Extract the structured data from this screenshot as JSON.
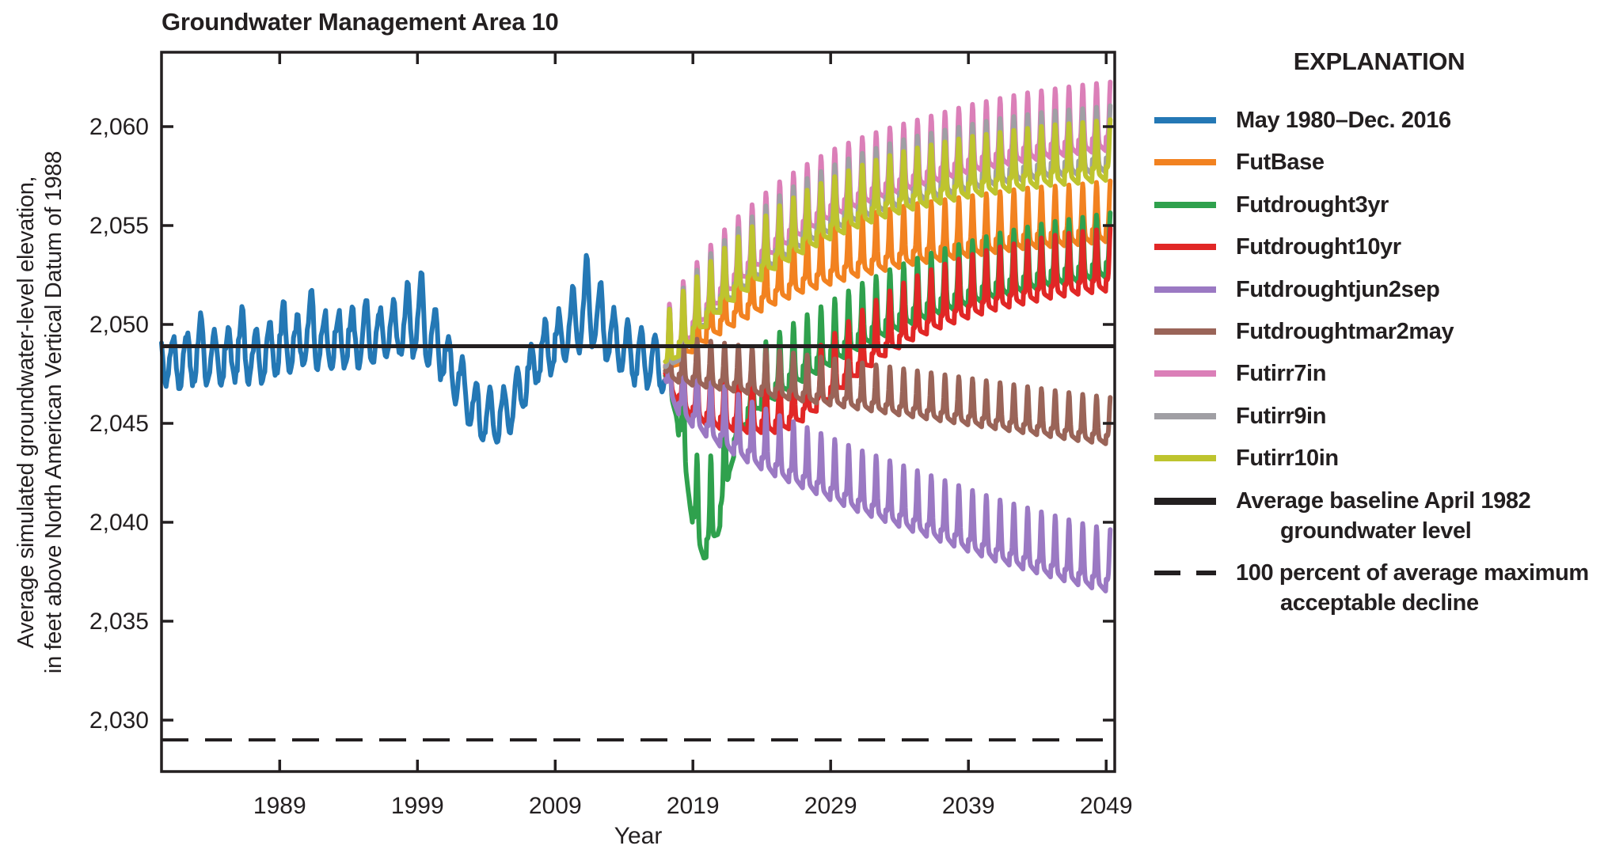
{
  "title": "Groundwater Management Area 10",
  "y_axis": {
    "label_line1": "Average simulated groundwater-level elevation,",
    "label_line2": "in feet above North American Vertical Datum of 1988"
  },
  "x_axis": {
    "label": "Year"
  },
  "legend": {
    "heading": "EXPLANATION",
    "items": [
      {
        "label": "May 1980–Dec. 2016",
        "color": "#2478b5",
        "style": "line"
      },
      {
        "label": "FutBase",
        "color": "#f28220",
        "style": "line"
      },
      {
        "label": "Futdrought3yr",
        "color": "#2fa14d",
        "style": "line"
      },
      {
        "label": "Futdrought10yr",
        "color": "#e12726",
        "style": "line"
      },
      {
        "label": "Futdroughtjun2sep",
        "color": "#9b79c3",
        "style": "line"
      },
      {
        "label": "Futdroughtmar2may",
        "color": "#9a6458",
        "style": "line"
      },
      {
        "label": "Futirr7in",
        "color": "#db7fb8",
        "style": "line"
      },
      {
        "label": "Futirr9in",
        "color": "#a09fa4",
        "style": "line"
      },
      {
        "label": "Futirr10in",
        "color": "#bec42e",
        "style": "line"
      },
      {
        "label": "Average baseline April 1982",
        "label2": "groundwater level",
        "color": "#231f20",
        "style": "thick"
      },
      {
        "label": "100 percent of average maximum",
        "label2": "acceptable decline",
        "color": "#231f20",
        "style": "dashed"
      }
    ]
  },
  "chart_data": {
    "type": "line",
    "title": "Groundwater Management Area 10",
    "xlabel": "Year",
    "ylabel": "Average simulated groundwater-level elevation, in feet above North American Vertical Datum of 1988",
    "xlim": [
      1980.42,
      2049.62
    ],
    "ylim": [
      2027.4,
      2063.76
    ],
    "x_ticks": [
      {
        "v": 1989,
        "label": "1989"
      },
      {
        "v": 1999,
        "label": "1999"
      },
      {
        "v": 2009,
        "label": "2009"
      },
      {
        "v": 2019,
        "label": "2019"
      },
      {
        "v": 2029,
        "label": "2029"
      },
      {
        "v": 2039,
        "label": "2039"
      },
      {
        "v": 2049,
        "label": "2049"
      }
    ],
    "y_ticks": [
      {
        "v": 2030,
        "label": "2,030"
      },
      {
        "v": 2035,
        "label": "2,035"
      },
      {
        "v": 2040,
        "label": "2,040"
      },
      {
        "v": 2045,
        "label": "2,045"
      },
      {
        "v": 2050,
        "label": "2,050"
      },
      {
        "v": 2055,
        "label": "2,055"
      },
      {
        "v": 2060,
        "label": "2,060"
      }
    ],
    "baseline": {
      "label": "Average baseline April 1982 groundwater level",
      "value": 2048.9,
      "color": "#231f20"
    },
    "decline_line": {
      "label": "100 percent of average maximum acceptable decline",
      "value": 2029.0,
      "color": "#231f20",
      "dashed": true
    },
    "seasonal_note": "All series oscillate annually (monthly time step); anchors give approximate annual mean groundwater level in feet; amp_up/amp_dn give approximate seasonal peak/trough offsets from the mean.",
    "series": [
      {
        "name": "May 1980-Dec. 2016",
        "kind": "historical",
        "color": "#2478b5",
        "range": [
          1980.42,
          2017.0
        ],
        "amp_up": 1.4,
        "amp_dn": 1.5,
        "noise": 0.5,
        "amp_boost": {
          "1983": 1.6,
          "1986": 1.7,
          "1989": 1.6,
          "1991": 1.9,
          "1995": 1.5,
          "1998": 1.7,
          "1999": 2.3,
          "2000": 1.4,
          "2005": 0.9,
          "2010": 1.6,
          "2011": 2.3,
          "2012": 1.6
        },
        "anchors": [
          [
            1980.42,
            2048.8
          ],
          [
            1981,
            2048.2
          ],
          [
            1982,
            2048.3
          ],
          [
            1983,
            2048.6
          ],
          [
            1984,
            2048.4
          ],
          [
            1985,
            2048.5
          ],
          [
            1986,
            2048.8
          ],
          [
            1987,
            2048.5
          ],
          [
            1988,
            2048.7
          ],
          [
            1989,
            2049.1
          ],
          [
            1990,
            2049.0
          ],
          [
            1991,
            2049.5
          ],
          [
            1992,
            2049.4
          ],
          [
            1993,
            2049.3
          ],
          [
            1994,
            2049.5
          ],
          [
            1995,
            2049.4
          ],
          [
            1996,
            2049.5
          ],
          [
            1997,
            2049.8
          ],
          [
            1998,
            2050.0
          ],
          [
            1999,
            2049.9
          ],
          [
            2000,
            2049.3
          ],
          [
            2001,
            2048.6
          ],
          [
            2002,
            2047.4
          ],
          [
            2003,
            2046.1
          ],
          [
            2004,
            2045.4
          ],
          [
            2005,
            2045.5
          ],
          [
            2006,
            2046.2
          ],
          [
            2007,
            2047.5
          ],
          [
            2008,
            2048.8
          ],
          [
            2009,
            2049.2
          ],
          [
            2010,
            2049.8
          ],
          [
            2011,
            2050.4
          ],
          [
            2012,
            2050.3
          ],
          [
            2013,
            2049.6
          ],
          [
            2014,
            2048.9
          ],
          [
            2015,
            2048.5
          ],
          [
            2016,
            2048.3
          ],
          [
            2017,
            2047.9
          ]
        ]
      },
      {
        "name": "FutBase",
        "kind": "future",
        "color": "#f28220",
        "range": [
          2017.0,
          2049.3
        ],
        "amp_up": 1.5,
        "amp_dn": 1.6,
        "anchors": [
          [
            2017,
            2048.7
          ],
          [
            2018,
            2049.6
          ],
          [
            2019,
            2050.2
          ],
          [
            2020,
            2050.7
          ],
          [
            2021,
            2051.1
          ],
          [
            2022,
            2051.5
          ],
          [
            2023,
            2051.9
          ],
          [
            2025,
            2052.6
          ],
          [
            2027,
            2053.2
          ],
          [
            2029,
            2053.6
          ],
          [
            2031,
            2054.0
          ],
          [
            2033,
            2054.3
          ],
          [
            2035,
            2054.6
          ],
          [
            2037,
            2054.8
          ],
          [
            2039,
            2055.0
          ],
          [
            2041,
            2055.2
          ],
          [
            2043,
            2055.4
          ],
          [
            2045,
            2055.5
          ],
          [
            2047,
            2055.6
          ],
          [
            2049.6,
            2055.8
          ]
        ]
      },
      {
        "name": "Futdrought3yr",
        "kind": "future",
        "color": "#2fa14d",
        "range": [
          2017.0,
          2049.3
        ],
        "amp_up": 1.5,
        "amp_dn": 1.8,
        "amp_segments": [
          [
            2017.9,
            2021.6,
            2.8,
            2.0
          ]
        ],
        "anchors": [
          [
            2017,
            2048.4
          ],
          [
            2017.8,
            2047.0
          ],
          [
            2018.3,
            2045.0
          ],
          [
            2018.8,
            2042.6
          ],
          [
            2019.3,
            2040.6
          ],
          [
            2019.8,
            2040.0
          ],
          [
            2020.3,
            2040.6
          ],
          [
            2020.8,
            2041.2
          ],
          [
            2021.3,
            2043.0
          ],
          [
            2022,
            2045.2
          ],
          [
            2022.8,
            2046.6
          ],
          [
            2023.8,
            2047.4
          ],
          [
            2025,
            2048.0
          ],
          [
            2027,
            2048.9
          ],
          [
            2029,
            2049.7
          ],
          [
            2031,
            2050.5
          ],
          [
            2033,
            2051.2
          ],
          [
            2035,
            2051.8
          ],
          [
            2037,
            2052.3
          ],
          [
            2039,
            2052.7
          ],
          [
            2041,
            2053.1
          ],
          [
            2043,
            2053.4
          ],
          [
            2045,
            2053.7
          ],
          [
            2047,
            2053.9
          ],
          [
            2049.6,
            2054.2
          ]
        ]
      },
      {
        "name": "Futdrought10yr",
        "kind": "future",
        "color": "#e12726",
        "range": [
          2017.0,
          2049.3
        ],
        "amp_up": 1.8,
        "amp_dn": 1.4,
        "anchors": [
          [
            2017,
            2048.3
          ],
          [
            2018,
            2047.2
          ],
          [
            2019,
            2046.6
          ],
          [
            2020,
            2046.3
          ],
          [
            2021,
            2046.1
          ],
          [
            2022,
            2046.0
          ],
          [
            2023,
            2045.9
          ],
          [
            2024,
            2045.9
          ],
          [
            2025,
            2045.9
          ],
          [
            2026,
            2046.1
          ],
          [
            2027,
            2046.5
          ],
          [
            2028,
            2047.0
          ],
          [
            2029,
            2047.6
          ],
          [
            2030,
            2048.2
          ],
          [
            2031,
            2048.8
          ],
          [
            2033,
            2049.8
          ],
          [
            2035,
            2050.6
          ],
          [
            2037,
            2051.2
          ],
          [
            2039,
            2051.7
          ],
          [
            2041,
            2052.1
          ],
          [
            2043,
            2052.4
          ],
          [
            2045,
            2052.7
          ],
          [
            2047,
            2052.9
          ],
          [
            2049.6,
            2053.1
          ]
        ]
      },
      {
        "name": "Futdroughtjun2sep",
        "kind": "future",
        "color": "#9b79c3",
        "range": [
          2017.0,
          2049.3
        ],
        "amp_up": 1.8,
        "amp_dn": 1.4,
        "anchors": [
          [
            2017,
            2048.0
          ],
          [
            2018,
            2046.8
          ],
          [
            2019,
            2046.2
          ],
          [
            2020,
            2045.7
          ],
          [
            2021,
            2045.2
          ],
          [
            2022,
            2044.8
          ],
          [
            2023,
            2044.4
          ],
          [
            2025,
            2043.7
          ],
          [
            2027,
            2043.1
          ],
          [
            2029,
            2042.5
          ],
          [
            2031,
            2041.9
          ],
          [
            2033,
            2041.4
          ],
          [
            2035,
            2040.9
          ],
          [
            2037,
            2040.4
          ],
          [
            2039,
            2039.9
          ],
          [
            2041,
            2039.4
          ],
          [
            2043,
            2039.0
          ],
          [
            2045,
            2038.6
          ],
          [
            2047,
            2038.2
          ],
          [
            2049.6,
            2037.8
          ]
        ]
      },
      {
        "name": "Futdroughtmar2may",
        "kind": "future",
        "color": "#9a6458",
        "range": [
          2017.0,
          2049.3
        ],
        "amp_up": 1.4,
        "amp_dn": 1.0,
        "anchors": [
          [
            2017,
            2048.2
          ],
          [
            2019,
            2047.9
          ],
          [
            2021,
            2047.7
          ],
          [
            2023,
            2047.5
          ],
          [
            2025,
            2047.3
          ],
          [
            2027,
            2047.1
          ],
          [
            2029,
            2046.9
          ],
          [
            2031,
            2046.7
          ],
          [
            2033,
            2046.5
          ],
          [
            2035,
            2046.3
          ],
          [
            2037,
            2046.1
          ],
          [
            2039,
            2045.9
          ],
          [
            2041,
            2045.7
          ],
          [
            2043,
            2045.5
          ],
          [
            2045,
            2045.3
          ],
          [
            2047,
            2045.1
          ],
          [
            2049.6,
            2044.9
          ]
        ]
      },
      {
        "name": "Futirr7in",
        "kind": "future",
        "color": "#db7fb8",
        "range": [
          2017.0,
          2049.3
        ],
        "amp_up": 1.9,
        "amp_dn": 1.6,
        "anchors": [
          [
            2017,
            2048.8
          ],
          [
            2018,
            2050.0
          ],
          [
            2019,
            2051.0
          ],
          [
            2020,
            2051.9
          ],
          [
            2021,
            2052.7
          ],
          [
            2022,
            2053.4
          ],
          [
            2023,
            2054.0
          ],
          [
            2025,
            2055.2
          ],
          [
            2027,
            2056.1
          ],
          [
            2029,
            2056.9
          ],
          [
            2031,
            2057.5
          ],
          [
            2033,
            2058.0
          ],
          [
            2035,
            2058.4
          ],
          [
            2037,
            2058.8
          ],
          [
            2039,
            2059.2
          ],
          [
            2041,
            2059.5
          ],
          [
            2043,
            2059.8
          ],
          [
            2045,
            2060.0
          ],
          [
            2047,
            2060.2
          ],
          [
            2049.6,
            2060.4
          ]
        ]
      },
      {
        "name": "Futirr9in",
        "kind": "future",
        "color": "#a09fa4",
        "range": [
          2017.0,
          2049.3
        ],
        "amp_up": 1.7,
        "amp_dn": 1.7,
        "anchors": [
          [
            2017,
            2048.8
          ],
          [
            2018,
            2049.9
          ],
          [
            2019,
            2050.8
          ],
          [
            2020,
            2051.7
          ],
          [
            2021,
            2052.4
          ],
          [
            2022,
            2053.0
          ],
          [
            2023,
            2053.6
          ],
          [
            2025,
            2054.7
          ],
          [
            2027,
            2055.6
          ],
          [
            2029,
            2056.3
          ],
          [
            2031,
            2056.9
          ],
          [
            2033,
            2057.4
          ],
          [
            2035,
            2057.8
          ],
          [
            2037,
            2058.1
          ],
          [
            2039,
            2058.4
          ],
          [
            2041,
            2058.7
          ],
          [
            2043,
            2058.9
          ],
          [
            2045,
            2059.1
          ],
          [
            2047,
            2059.2
          ],
          [
            2049.6,
            2059.4
          ]
        ]
      },
      {
        "name": "Futirr10in",
        "kind": "future",
        "color": "#bec42e",
        "range": [
          2017.0,
          2049.3
        ],
        "amp_up": 1.5,
        "amp_dn": 1.6,
        "anchors": [
          [
            2017,
            2049.0
          ],
          [
            2018,
            2050.0
          ],
          [
            2019,
            2050.7
          ],
          [
            2020,
            2051.5
          ],
          [
            2021,
            2052.2
          ],
          [
            2022,
            2052.8
          ],
          [
            2023,
            2053.3
          ],
          [
            2025,
            2054.4
          ],
          [
            2027,
            2055.2
          ],
          [
            2029,
            2055.9
          ],
          [
            2031,
            2056.5
          ],
          [
            2033,
            2057.0
          ],
          [
            2035,
            2057.4
          ],
          [
            2037,
            2057.7
          ],
          [
            2039,
            2058.0
          ],
          [
            2041,
            2058.2
          ],
          [
            2043,
            2058.4
          ],
          [
            2045,
            2058.6
          ],
          [
            2047,
            2058.7
          ],
          [
            2049.6,
            2058.9
          ]
        ]
      }
    ]
  }
}
